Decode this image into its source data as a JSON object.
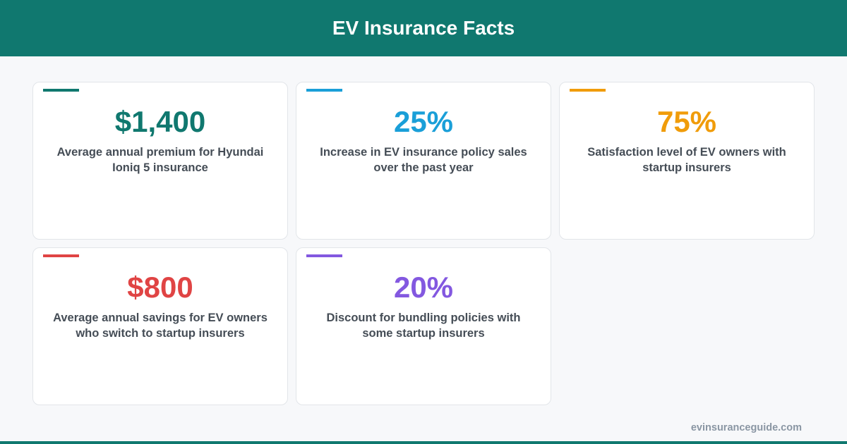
{
  "header": {
    "title": "EV Insurance Facts"
  },
  "cards": [
    {
      "value": "$1,400",
      "description": "Average annual premium for Hyundai Ioniq 5 insurance",
      "color": "#10786f"
    },
    {
      "value": "25%",
      "description": "Increase in EV insurance policy sales over the past year",
      "color": "#1a9fd8"
    },
    {
      "value": "75%",
      "description": "Satisfaction level of EV owners with startup insurers",
      "color": "#f09c0a"
    },
    {
      "value": "$800",
      "description": "Average annual savings for EV owners who switch to startup insurers",
      "color": "#e04444"
    },
    {
      "value": "20%",
      "description": "Discount for bundling policies with some startup insurers",
      "color": "#8358e0"
    }
  ],
  "footer": {
    "source": "evinsuranceguide.com"
  }
}
